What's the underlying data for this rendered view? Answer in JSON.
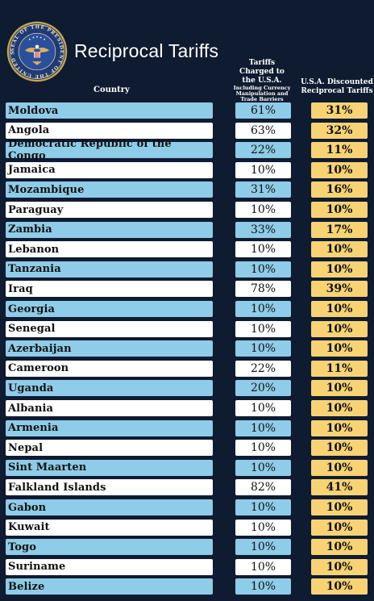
{
  "header": {
    "title": "Reciprocal Tariffs",
    "seal_text": "SEAL OF THE PRESIDENT OF THE UNITED STATES",
    "column_country": "Country",
    "column_tariff_main": "Tariffs Charged to the U.S.A.",
    "column_tariff_sub": "Including Currency Manipulation and Trade Barriers",
    "column_reciprocal": "U.S.A. Discounted Reciprocal Tariffs"
  },
  "colors": {
    "background": "#0f1b31",
    "row_blue": "#8ecce8",
    "row_white": "#ffffff",
    "reciprocal_gold": "#f7d374"
  },
  "chart_data": {
    "type": "table",
    "title": "Reciprocal Tariffs",
    "columns": [
      "Country",
      "Tariffs Charged to the U.S.A.",
      "U.S.A. Discounted Reciprocal Tariffs"
    ],
    "rows": [
      {
        "country": "Moldova",
        "tariff": "61%",
        "reciprocal": "31%"
      },
      {
        "country": "Angola",
        "tariff": "63%",
        "reciprocal": "32%"
      },
      {
        "country": "Democratic Republic of the Congo",
        "tariff": "22%",
        "reciprocal": "11%"
      },
      {
        "country": "Jamaica",
        "tariff": "10%",
        "reciprocal": "10%"
      },
      {
        "country": "Mozambique",
        "tariff": "31%",
        "reciprocal": "16%"
      },
      {
        "country": "Paraguay",
        "tariff": "10%",
        "reciprocal": "10%"
      },
      {
        "country": "Zambia",
        "tariff": "33%",
        "reciprocal": "17%"
      },
      {
        "country": "Lebanon",
        "tariff": "10%",
        "reciprocal": "10%"
      },
      {
        "country": "Tanzania",
        "tariff": "10%",
        "reciprocal": "10%"
      },
      {
        "country": "Iraq",
        "tariff": "78%",
        "reciprocal": "39%"
      },
      {
        "country": "Georgia",
        "tariff": "10%",
        "reciprocal": "10%"
      },
      {
        "country": "Senegal",
        "tariff": "10%",
        "reciprocal": "10%"
      },
      {
        "country": "Azerbaijan",
        "tariff": "10%",
        "reciprocal": "10%"
      },
      {
        "country": "Cameroon",
        "tariff": "22%",
        "reciprocal": "11%"
      },
      {
        "country": "Uganda",
        "tariff": "20%",
        "reciprocal": "10%"
      },
      {
        "country": "Albania",
        "tariff": "10%",
        "reciprocal": "10%"
      },
      {
        "country": "Armenia",
        "tariff": "10%",
        "reciprocal": "10%"
      },
      {
        "country": "Nepal",
        "tariff": "10%",
        "reciprocal": "10%"
      },
      {
        "country": "Sint Maarten",
        "tariff": "10%",
        "reciprocal": "10%"
      },
      {
        "country": "Falkland Islands",
        "tariff": "82%",
        "reciprocal": "41%"
      },
      {
        "country": "Gabon",
        "tariff": "10%",
        "reciprocal": "10%"
      },
      {
        "country": "Kuwait",
        "tariff": "10%",
        "reciprocal": "10%"
      },
      {
        "country": "Togo",
        "tariff": "10%",
        "reciprocal": "10%"
      },
      {
        "country": "Suriname",
        "tariff": "10%",
        "reciprocal": "10%"
      },
      {
        "country": "Belize",
        "tariff": "10%",
        "reciprocal": "10%"
      }
    ]
  }
}
